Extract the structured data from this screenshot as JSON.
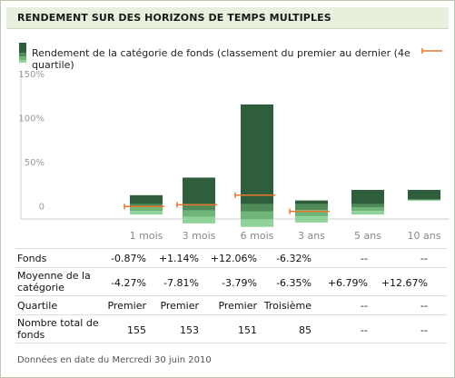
{
  "title": "RENDEMENT SUR DES HORIZONS DE TEMPS MULTIPLES",
  "legend": {
    "label": "Rendement de la catégorie de fonds (classement du premier au dernier (4e quartile)"
  },
  "colors": {
    "q1": "#2e5e3c",
    "q2": "#4f8a58",
    "q3": "#6fb577",
    "q4": "#8fd39a",
    "fund_marker": "#e8762b",
    "negative": "#b5121b",
    "positive": "#2d8a2d"
  },
  "chart_data": {
    "type": "bar",
    "description_units": "percent",
    "categories": [
      "1 mois",
      "3 mois",
      "6 mois",
      "3 ans",
      "5 ans",
      "10 ans"
    ],
    "yticks": [
      "150%",
      "100%",
      "50%",
      "0"
    ],
    "ylim": [
      -15,
      150
    ],
    "quartile_ranges": [
      {
        "top": 12,
        "bottom": -10
      },
      {
        "top": 32,
        "bottom": -20
      },
      {
        "top": 115,
        "bottom": -24
      },
      {
        "top": 6,
        "bottom": -19
      },
      {
        "top": 18,
        "bottom": -10
      },
      {
        "top": 18,
        "bottom": 7
      }
    ],
    "fund_returns": [
      -0.87,
      1.14,
      12.06,
      -6.32,
      null,
      null
    ]
  },
  "table": {
    "columns": [
      "1 mois",
      "3 mois",
      "6 mois",
      "3 ans",
      "5 ans",
      "10 ans"
    ],
    "rows": [
      {
        "label": "Fonds",
        "values": [
          "-0.87%",
          "+1.14%",
          "+12.06%",
          "-6.32%",
          "--",
          "--"
        ]
      },
      {
        "label": "Moyenne de la catégorie",
        "values": [
          "-4.27%",
          "-7.81%",
          "-3.79%",
          "-6.35%",
          "+6.79%",
          "+12.67%"
        ]
      },
      {
        "label": "Quartile",
        "values": [
          "Premier",
          "Premier",
          "Premier",
          "Troisième",
          "--",
          "--"
        ]
      },
      {
        "label": "Nombre total de fonds",
        "values": [
          "155",
          "153",
          "151",
          "85",
          "--",
          "--"
        ]
      }
    ]
  },
  "footer": "Données en date du Mercredi 30 juin 2010"
}
